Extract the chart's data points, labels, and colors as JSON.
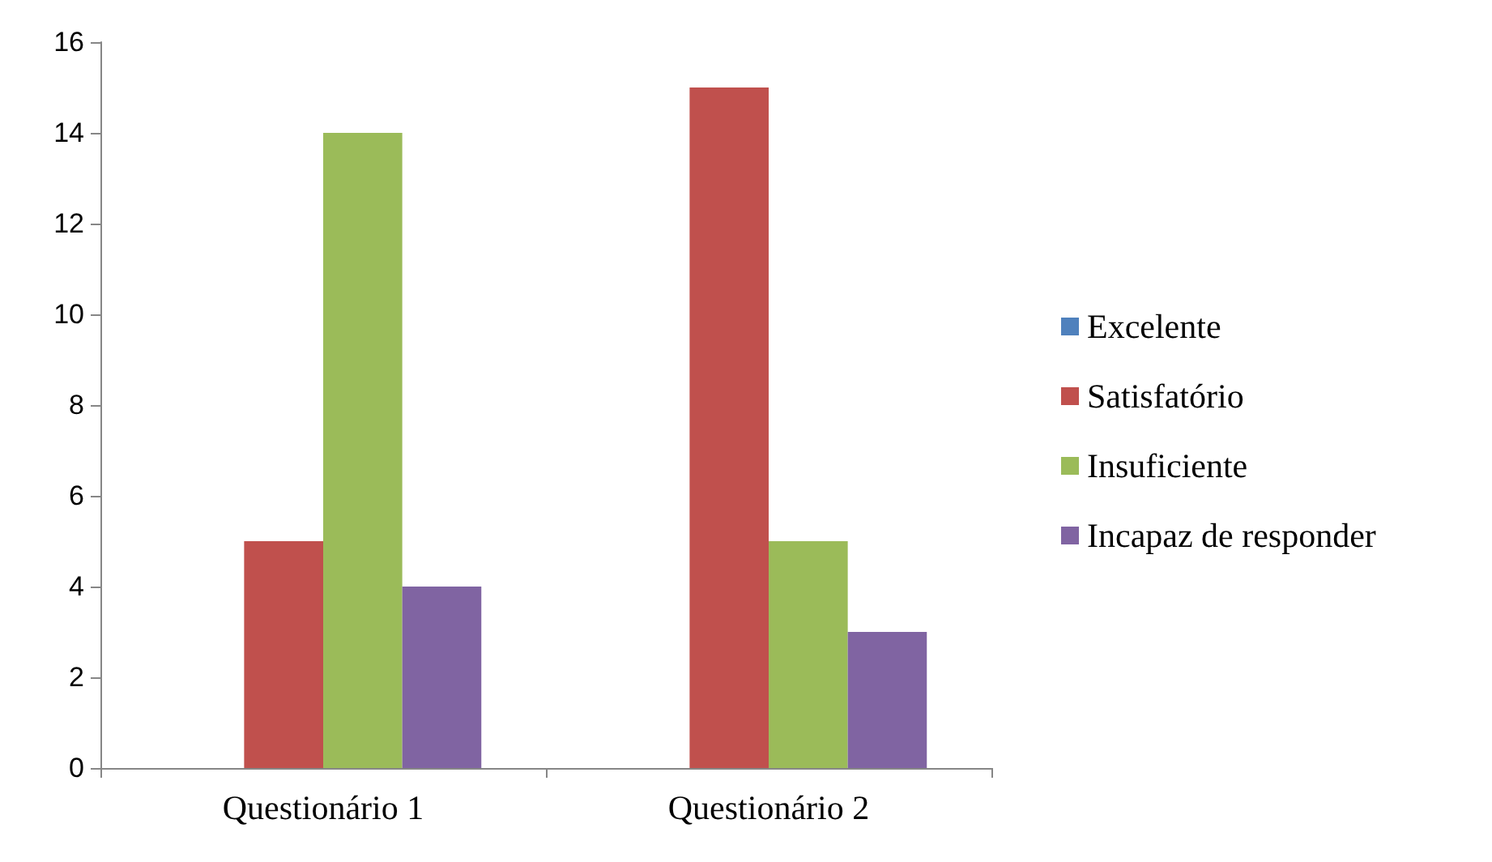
{
  "chart_data": {
    "type": "bar",
    "categories": [
      "Questionário 1",
      "Questionário 2"
    ],
    "series": [
      {
        "name": "Excelente",
        "color": "#4f81bd",
        "values": [
          0,
          0
        ]
      },
      {
        "name": "Satisfatório",
        "color": "#c0504d",
        "values": [
          5,
          15
        ]
      },
      {
        "name": "Insuficiente",
        "color": "#9bbb59",
        "values": [
          14,
          5
        ]
      },
      {
        "name": "Incapaz de responder",
        "color": "#8064a2",
        "values": [
          4,
          3
        ]
      }
    ],
    "ylim": [
      0,
      16
    ],
    "yticks": [
      0,
      2,
      4,
      6,
      8,
      10,
      12,
      14,
      16
    ],
    "grid": false,
    "legend": "right"
  }
}
